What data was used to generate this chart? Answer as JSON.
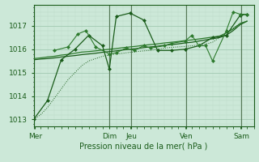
{
  "xlabel": "Pression niveau de la mer( hPa )",
  "bg_color": "#cce8d8",
  "plot_bg_color": "#cce8d8",
  "grid_color_major": "#99c4aa",
  "grid_color_minor": "#b8d8c4",
  "axis_color": "#1a5c1a",
  "text_color": "#1a5c1a",
  "vline_color": "#557755",
  "ylim": [
    1012.7,
    1017.9
  ],
  "yticks": [
    1013,
    1014,
    1015,
    1016,
    1017
  ],
  "xlim": [
    0,
    16
  ],
  "day_labels": [
    "Mer",
    "Dim",
    "Jeu",
    "Ven",
    "Sam"
  ],
  "day_positions": [
    0.1,
    5.5,
    7.1,
    11.1,
    15.1
  ],
  "dark_vlines": [
    5.5,
    7.1,
    11.1,
    15.1
  ],
  "mc": "#1a5c1a",
  "lc": "#2d7a2d",
  "series1_x": [
    0,
    0.5,
    1.0,
    1.5,
    2.0,
    2.5,
    3.0,
    3.5,
    4.0,
    4.5,
    5.0,
    5.5,
    6.0,
    6.5,
    7.0,
    7.5,
    8.0,
    8.5,
    9.0,
    9.5,
    10.0,
    10.5,
    11.0,
    11.5,
    12.0,
    12.5,
    13.0,
    13.5,
    14.0,
    14.5,
    15.0,
    15.5
  ],
  "series1_y": [
    1013.0,
    1013.2,
    1013.5,
    1013.9,
    1014.3,
    1014.7,
    1015.0,
    1015.3,
    1015.5,
    1015.6,
    1015.7,
    1015.75,
    1015.8,
    1015.83,
    1015.87,
    1015.9,
    1015.93,
    1015.95,
    1016.0,
    1016.05,
    1016.08,
    1016.1,
    1016.12,
    1016.15,
    1016.18,
    1016.22,
    1016.3,
    1016.5,
    1016.7,
    1016.9,
    1017.1,
    1017.2
  ],
  "series2_x": [
    0,
    0.5,
    1.0,
    1.5,
    2.0,
    2.5,
    3.0,
    3.5,
    4.0,
    4.5,
    5.0,
    5.5,
    6.0,
    6.5,
    7.0,
    7.5,
    8.0,
    8.5,
    9.0,
    9.5,
    10.0,
    10.5,
    11.0,
    11.5,
    12.0,
    12.5,
    13.0,
    13.5,
    14.0,
    14.5,
    15.0,
    15.5
  ],
  "series2_y": [
    1015.55,
    1015.58,
    1015.6,
    1015.63,
    1015.67,
    1015.7,
    1015.73,
    1015.77,
    1015.8,
    1015.83,
    1015.87,
    1015.9,
    1015.93,
    1015.97,
    1016.0,
    1016.03,
    1016.07,
    1016.1,
    1016.13,
    1016.17,
    1016.2,
    1016.23,
    1016.27,
    1016.3,
    1016.35,
    1016.4,
    1016.45,
    1016.5,
    1016.6,
    1016.8,
    1017.05,
    1017.2
  ],
  "series3_x": [
    0,
    0.5,
    1.0,
    1.5,
    2.0,
    2.5,
    3.0,
    3.5,
    4.0,
    4.5,
    5.0,
    5.5,
    6.0,
    6.5,
    7.0,
    7.5,
    8.0,
    8.5,
    9.0,
    9.5,
    10.0,
    10.5,
    11.0,
    11.5,
    12.0,
    12.5,
    13.0,
    13.5,
    14.0,
    14.5,
    15.0,
    15.5
  ],
  "series3_y": [
    1015.6,
    1015.63,
    1015.67,
    1015.7,
    1015.75,
    1015.78,
    1015.83,
    1015.88,
    1015.9,
    1015.93,
    1015.97,
    1016.0,
    1016.03,
    1016.07,
    1016.1,
    1016.13,
    1016.17,
    1016.2,
    1016.23,
    1016.27,
    1016.3,
    1016.33,
    1016.37,
    1016.4,
    1016.44,
    1016.48,
    1016.52,
    1016.56,
    1016.7,
    1016.87,
    1017.1,
    1017.2
  ],
  "zigzag_x": [
    0,
    1,
    2,
    3,
    4,
    5,
    5.5,
    6,
    7,
    8,
    9,
    10,
    11,
    12,
    13,
    14,
    15,
    15.5
  ],
  "zigzag_y": [
    1013.0,
    1013.8,
    1015.55,
    1016.0,
    1016.6,
    1016.15,
    1015.15,
    1017.4,
    1017.55,
    1017.25,
    1015.95,
    1015.95,
    1016.0,
    1016.15,
    1016.5,
    1016.6,
    1017.45,
    1017.5
  ],
  "zigzag2_x": [
    1.5,
    2.5,
    3.2,
    3.8,
    4.5,
    5.5,
    6.0,
    6.7,
    7.3,
    8.0,
    8.5,
    9.5,
    10.0,
    11.0,
    11.5,
    12.0,
    12.5,
    13.0,
    14.0,
    14.5,
    15.0,
    15.5
  ],
  "zigzag2_y": [
    1015.95,
    1016.1,
    1016.65,
    1016.8,
    1016.1,
    1015.8,
    1015.85,
    1016.05,
    1015.95,
    1016.15,
    1016.05,
    1016.15,
    1016.25,
    1016.35,
    1016.6,
    1016.15,
    1016.15,
    1015.5,
    1016.8,
    1017.6,
    1017.5,
    1017.5
  ]
}
